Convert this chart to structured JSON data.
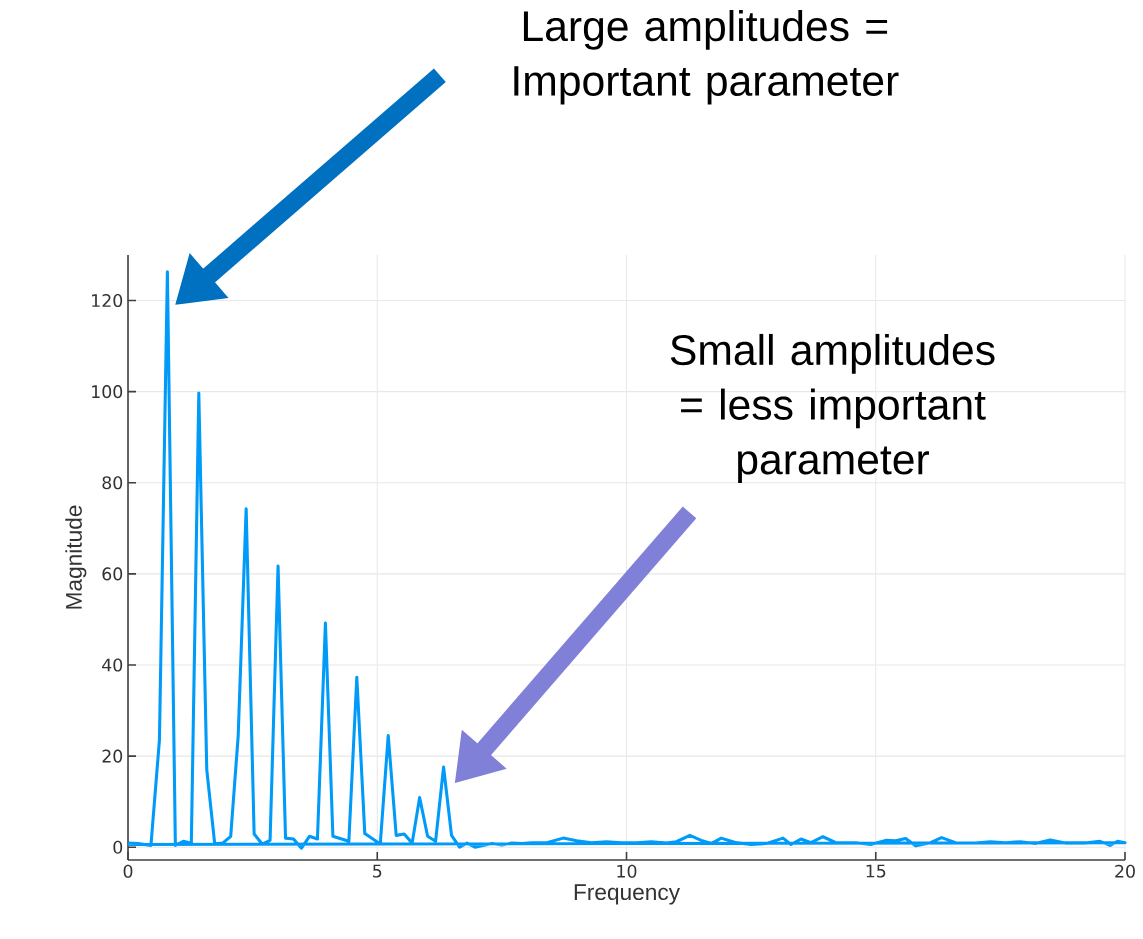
{
  "chart_data": {
    "type": "line",
    "xlabel": "Frequency",
    "ylabel": "Magnitude",
    "x": [
      0,
      0.2,
      0.46,
      0.63,
      0.79,
      0.95,
      1.11,
      1.27,
      1.42,
      1.58,
      1.74,
      1.9,
      2.06,
      2.21,
      2.37,
      2.53,
      2.69,
      2.85,
      3.01,
      3.16,
      3.32,
      3.48,
      3.64,
      3.8,
      3.96,
      4.11,
      4.43,
      4.59,
      4.75,
      5.06,
      5.22,
      5.38,
      5.54,
      5.7,
      5.85,
      6.01,
      6.17,
      6.33,
      6.49,
      6.65,
      6.8,
      6.96,
      7.12,
      7.3,
      7.5,
      7.7,
      7.9,
      8.1,
      8.4,
      8.73,
      9.0,
      9.3,
      9.6,
      9.9,
      10.2,
      10.5,
      10.8,
      11.0,
      11.27,
      11.5,
      11.7,
      11.9,
      12.2,
      12.5,
      12.8,
      13.14,
      13.3,
      13.5,
      13.7,
      13.94,
      14.2,
      14.6,
      14.9,
      15.2,
      15.4,
      15.6,
      15.8,
      16.1,
      16.32,
      16.6,
      17.0,
      17.3,
      17.6,
      17.9,
      18.2,
      18.5,
      18.8,
      19.2,
      19.5,
      19.7,
      19.85,
      20,
      0
    ],
    "series": [
      {
        "color": "#009af9",
        "values": [
          0.9,
          0.8,
          0.4,
          23.5,
          126.3,
          0.4,
          1.3,
          0.9,
          99.7,
          17,
          0.7,
          0.9,
          2.4,
          24.4,
          74.3,
          2.9,
          0.7,
          1.5,
          61.7,
          2,
          1.8,
          -0.2,
          2.4,
          1.8,
          49.2,
          2.4,
          1.3,
          37.3,
          3,
          0.7,
          24.5,
          2.6,
          2.9,
          0.9,
          10.9,
          2.4,
          1.3,
          17.6,
          2.6,
          0,
          0.9,
          0,
          0.4,
          0.8,
          0.5,
          0.9,
          0.8,
          1.0,
          1.0,
          2.0,
          1.4,
          1.0,
          1.2,
          1.0,
          1.0,
          1.2,
          0.9,
          1.2,
          2.6,
          1.5,
          0.8,
          2.0,
          1.0,
          0.6,
          0.8,
          2.0,
          0.6,
          1.8,
          1.0,
          2.3,
          1.0,
          1.0,
          0.6,
          1.5,
          1.4,
          1.9,
          0.3,
          1.0,
          2.1,
          1.0,
          0.9,
          1.2,
          1.0,
          1.2,
          0.8,
          1.6,
          0.9,
          0.9,
          1.3,
          0.4,
          1.3,
          1.0,
          0.6
        ]
      }
    ],
    "xlim": [
      0,
      20
    ],
    "ylim": [
      -2.8,
      130
    ],
    "xticks": [
      0,
      5,
      10,
      15,
      20
    ],
    "yticks": [
      0,
      20,
      40,
      60,
      80,
      100,
      120
    ],
    "grid": true,
    "line_style": "solid",
    "marker": "none",
    "annotations": [
      "Large amplitudes = Important parameter",
      "Small amplitudes = less important parameter"
    ]
  }
}
